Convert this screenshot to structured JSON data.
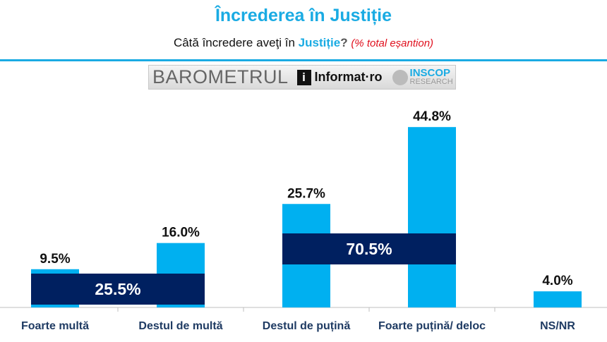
{
  "header": {
    "title": "Încrederea în Justiție",
    "question_pre": "Câtă încredere aveţi în ",
    "question_acc": "Justiție",
    "question_mark": "?",
    "note": "(% total eșantion)"
  },
  "logo": {
    "barometer": "BAROMETRUL",
    "informat": "Informat·ro",
    "inscop": "INSCOP",
    "research": "RESEARCH"
  },
  "colors": {
    "bar": "#00b0f0",
    "group": "#002060",
    "label": "#1f3b63"
  },
  "chart_data": {
    "type": "bar",
    "title": "Încrederea în Justiție",
    "categories": [
      "Foarte multă",
      "Destul de multă",
      "Destul de puțină",
      "Foarte puțină/ deloc",
      "NS/NR"
    ],
    "values": [
      9.5,
      16.0,
      25.7,
      44.8,
      4.0
    ],
    "value_labels": [
      "9.5%",
      "16.0%",
      "25.7%",
      "44.8%",
      "4.0%"
    ],
    "groups": [
      {
        "label": "25.5%",
        "value": 25.5,
        "categories": [
          0,
          1
        ]
      },
      {
        "label": "70.5%",
        "value": 70.5,
        "categories": [
          2,
          3
        ]
      }
    ],
    "ylim": [
      0,
      50
    ],
    "grid": false,
    "legend": "none"
  }
}
